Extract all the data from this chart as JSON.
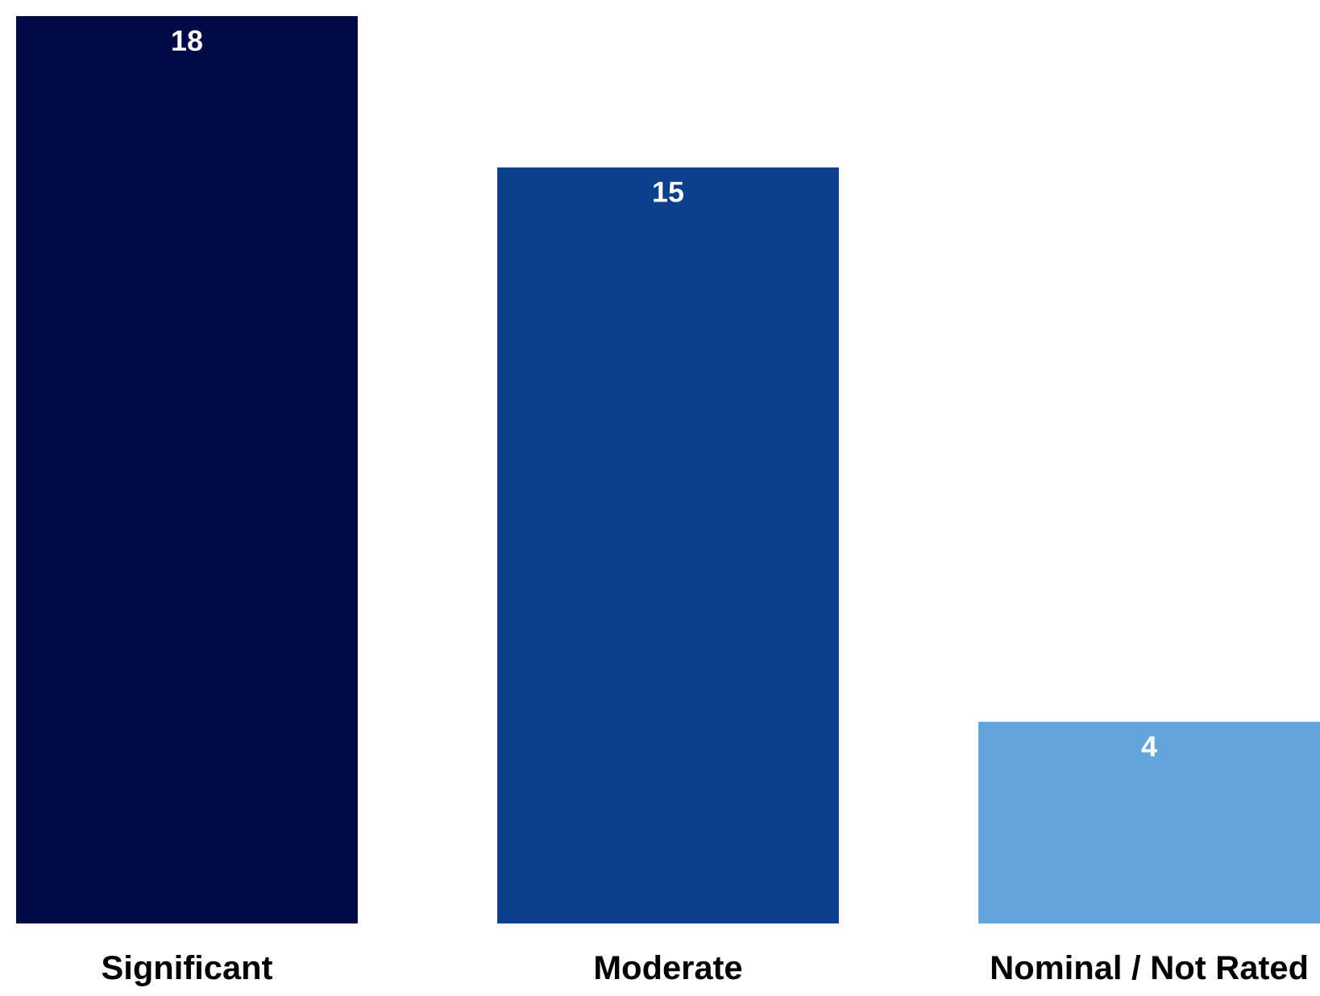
{
  "chart_data": {
    "type": "bar",
    "categories": [
      "Significant",
      "Moderate",
      "Nominal / Not Rated"
    ],
    "values": [
      18,
      15,
      4
    ],
    "colors": [
      "#020a45",
      "#0c3f8c",
      "#64a5d9"
    ],
    "data_labels": true,
    "grid": false,
    "legend": false
  }
}
